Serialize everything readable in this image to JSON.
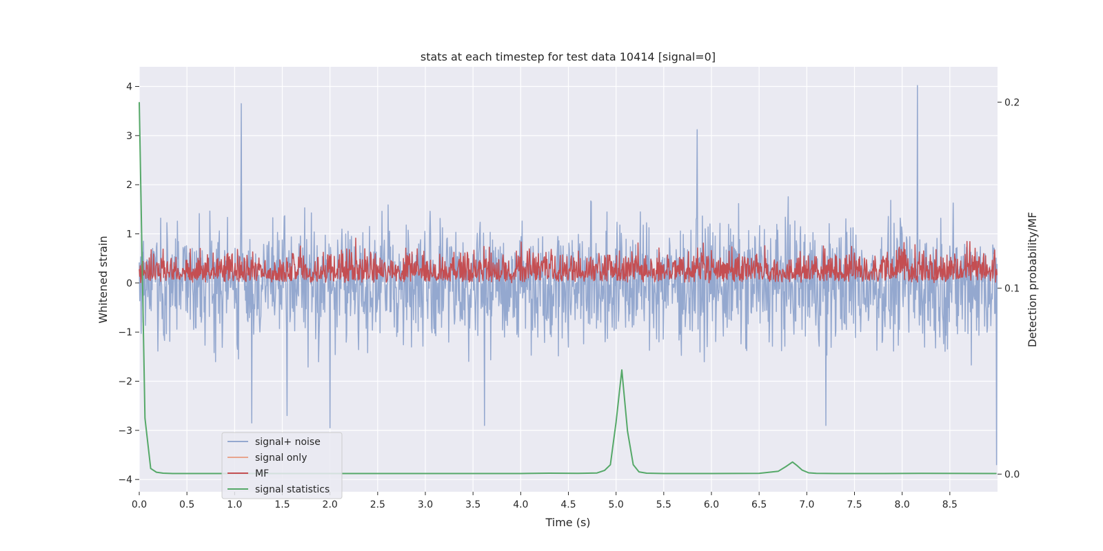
{
  "chart_data": {
    "type": "line",
    "title": "stats at each timestep for test data 10414 [signal=0]",
    "xlabel": "Time (s)",
    "ylabel_left": "Whitened strain",
    "ylabel_right": "Detection probability/MF",
    "xlim": [
      0.0,
      9.0
    ],
    "ylim_left": [
      -4.25,
      4.4
    ],
    "ylim_right": [
      -0.0095,
      0.219
    ],
    "x_ticks": [
      0.0,
      0.5,
      1.0,
      1.5,
      2.0,
      2.5,
      3.0,
      3.5,
      4.0,
      4.5,
      5.0,
      5.5,
      6.0,
      6.5,
      7.0,
      7.5,
      8.0,
      8.5
    ],
    "x_tick_labels": [
      "0.0",
      "0.5",
      "1.0",
      "1.5",
      "2.0",
      "2.5",
      "3.0",
      "3.5",
      "4.0",
      "4.5",
      "5.0",
      "5.5",
      "6.0",
      "6.5",
      "7.0",
      "7.5",
      "8.0",
      "8.5"
    ],
    "y_ticks_left": [
      -4,
      -3,
      -2,
      -1,
      0,
      1,
      2,
      3,
      4
    ],
    "y_tick_labels_left": [
      "−4",
      "−3",
      "−2",
      "−1",
      "0",
      "1",
      "2",
      "3",
      "4"
    ],
    "y_ticks_right": [
      0.0,
      0.1,
      0.2
    ],
    "y_tick_labels_right": [
      "0.0",
      "0.1",
      "0.2"
    ],
    "grid": true,
    "legend_position": "lower-left",
    "series": [
      {
        "name": "signal+ noise",
        "axis": "left",
        "color": "#94a8cf",
        "kind": "noise",
        "dt": 0.005,
        "range": [
          -2.5,
          4.0
        ],
        "highlights": [
          [
            1.07,
            3.65
          ],
          [
            5.85,
            3.12
          ],
          [
            8.16,
            4.02
          ],
          [
            2.0,
            -2.95
          ],
          [
            3.62,
            -2.9
          ],
          [
            7.2,
            -2.9
          ],
          [
            8.99,
            -3.7
          ],
          [
            1.18,
            -2.85
          ],
          [
            1.55,
            -2.7
          ]
        ]
      },
      {
        "name": "signal only",
        "axis": "left",
        "color": "#e8a48d",
        "kind": "flat",
        "values": []
      },
      {
        "name": "MF",
        "axis": "left",
        "color": "#c44e52",
        "kind": "noise",
        "dt": 0.005,
        "range": [
          0.0,
          0.95
        ]
      },
      {
        "name": "signal statistics",
        "axis": "right",
        "color": "#55a868",
        "kind": "line",
        "x": [
          0.0,
          0.06,
          0.12,
          0.18,
          0.25,
          0.35,
          0.5,
          1.0,
          2.0,
          3.0,
          4.0,
          4.3,
          4.6,
          4.8,
          4.88,
          4.94,
          5.0,
          5.06,
          5.12,
          5.18,
          5.24,
          5.32,
          5.5,
          6.0,
          6.5,
          6.7,
          6.78,
          6.85,
          6.9,
          6.95,
          7.02,
          7.1,
          7.3,
          7.8,
          8.2,
          8.99
        ],
        "values": [
          0.2,
          0.03,
          0.003,
          0.001,
          0.0005,
          0.0003,
          0.0003,
          0.0003,
          0.0003,
          0.0003,
          0.0003,
          0.0005,
          0.0004,
          0.0006,
          0.002,
          0.005,
          0.028,
          0.056,
          0.023,
          0.005,
          0.0012,
          0.0005,
          0.0003,
          0.0003,
          0.0004,
          0.0015,
          0.004,
          0.0065,
          0.0045,
          0.0022,
          0.0007,
          0.0004,
          0.0003,
          0.0003,
          0.0004,
          0.0003
        ]
      }
    ]
  }
}
